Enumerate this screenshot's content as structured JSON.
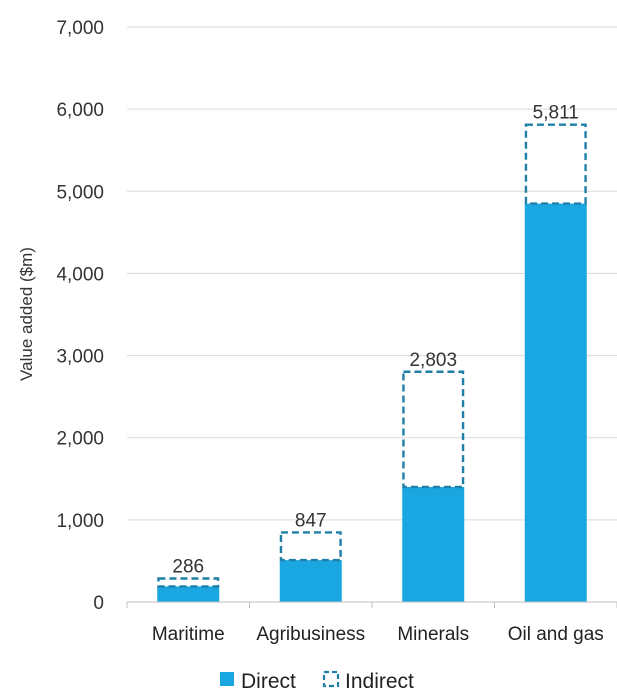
{
  "chart_data": {
    "type": "bar",
    "stacked": true,
    "categories": [
      "Maritime",
      "Agribusiness",
      "Minerals",
      "Oil and gas"
    ],
    "series": [
      {
        "name": "Direct",
        "values": [
          190,
          510,
          1400,
          4850
        ]
      },
      {
        "name": "Indirect",
        "values": [
          96,
          337,
          1403,
          961
        ]
      }
    ],
    "totals": [
      286,
      847,
      2803,
      5811
    ],
    "total_labels": [
      "286",
      "847",
      "2,803",
      "5,811"
    ],
    "title": "",
    "xlabel": "",
    "ylabel": "Value added ($m)",
    "ylim": [
      0,
      7000
    ],
    "yticks": [
      0,
      1000,
      2000,
      3000,
      4000,
      5000,
      6000,
      7000
    ],
    "ytick_labels": [
      "0",
      "1,000",
      "2,000",
      "3,000",
      "4,000",
      "5,000",
      "6,000",
      "7,000"
    ],
    "grid": true,
    "legend_position": "bottom",
    "colors": {
      "direct": "#1AA7E1",
      "indirect_border": "#1F7FA8",
      "grid": "#D9D9D9",
      "axis": "#BFBFBF"
    }
  }
}
